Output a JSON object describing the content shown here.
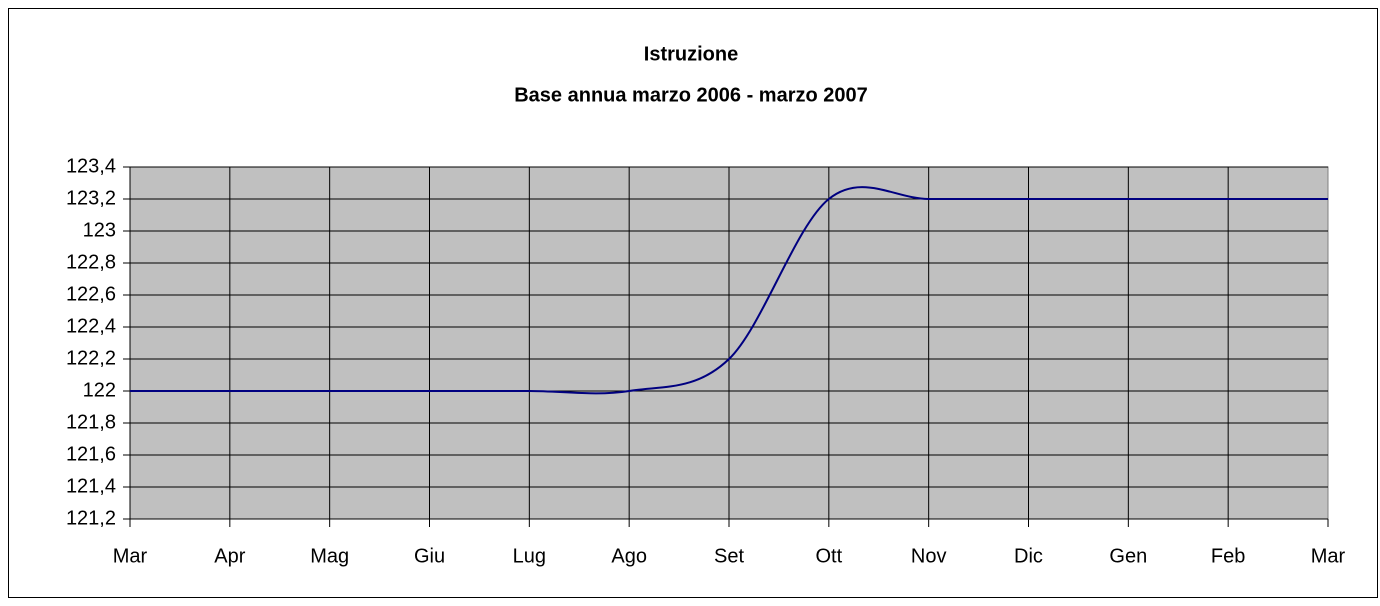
{
  "chart_data": {
    "type": "line",
    "title": "Istruzione",
    "subtitle": "Base annua marzo 2006 - marzo 2007",
    "categories": [
      "Mar",
      "Apr",
      "Mag",
      "Giu",
      "Lug",
      "Ago",
      "Set",
      "Ott",
      "Nov",
      "Dic",
      "Gen",
      "Feb",
      "Mar"
    ],
    "series": [
      {
        "name": "Istruzione",
        "color": "#000080",
        "values": [
          122,
          122,
          122,
          122,
          122,
          122,
          122.2,
          123.2,
          123.2,
          123.2,
          123.2,
          123.2,
          123.2
        ]
      }
    ],
    "ylim": [
      121.2,
      123.4
    ],
    "yticks": [
      {
        "value": 121.2,
        "label": "121,2"
      },
      {
        "value": 121.4,
        "label": "121,4"
      },
      {
        "value": 121.6,
        "label": "121,6"
      },
      {
        "value": 121.8,
        "label": "121,8"
      },
      122,
      {
        "value": 122.2,
        "label": "122,2"
      },
      {
        "value": 122.4,
        "label": "122,4"
      },
      {
        "value": 122.6,
        "label": "122,6"
      },
      {
        "value": 122.8,
        "label": "122,8"
      },
      123,
      {
        "value": 123.2,
        "label": "123,2"
      },
      {
        "value": 123.4,
        "label": "123,4"
      }
    ],
    "grid": true,
    "smooth": true,
    "plot_background": "#c0c0c0"
  }
}
